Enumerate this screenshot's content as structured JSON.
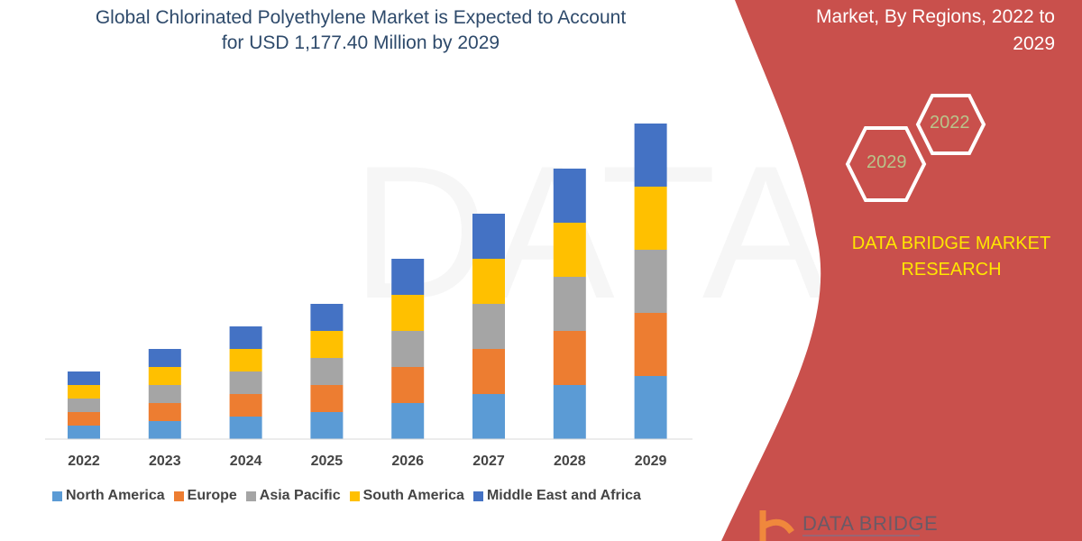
{
  "title_line1": "Global Chlorinated Polyethylene Market is Expected to Account",
  "title_line2": "for USD 1,177.40 Million by 2029",
  "side_panel": {
    "subtitle_line1": "Market, By Regions, 2022 to",
    "subtitle_line2": "2029",
    "hex_start": "2022",
    "hex_end": "2029",
    "brand_line1": "DATA BRIDGE MARKET",
    "brand_line2": "RESEARCH",
    "logo_text": "DATA BRIDGE",
    "panel_color": "#c9504c"
  },
  "chart_data": {
    "type": "bar",
    "stacked": true,
    "title": "Global Chlorinated Polyethylene Market is Expected to Account for USD 1,177.40 Million by 2029",
    "categories": [
      "2022",
      "2023",
      "2024",
      "2025",
      "2026",
      "2027",
      "2028",
      "2029"
    ],
    "y_axis_labels_shown": false,
    "grid": false,
    "legend_placement": "bottom",
    "series": [
      {
        "name": "North America",
        "color": "#5b9bd5",
        "values": [
          1.5,
          2,
          2.5,
          3,
          4,
          5,
          6,
          7
        ]
      },
      {
        "name": "Europe",
        "color": "#ed7d31",
        "values": [
          1.5,
          2,
          2.5,
          3,
          4,
          5,
          6,
          7
        ]
      },
      {
        "name": "Asia Pacific",
        "color": "#a5a5a5",
        "values": [
          1.5,
          2,
          2.5,
          3,
          4,
          5,
          6,
          7
        ]
      },
      {
        "name": "South America",
        "color": "#ffc000",
        "values": [
          1.5,
          2,
          2.5,
          3,
          4,
          5,
          6,
          7
        ]
      },
      {
        "name": "Middle East and Africa",
        "color": "#4472c4",
        "values": [
          1.5,
          2,
          2.5,
          3,
          4,
          5,
          6,
          7
        ]
      }
    ]
  }
}
